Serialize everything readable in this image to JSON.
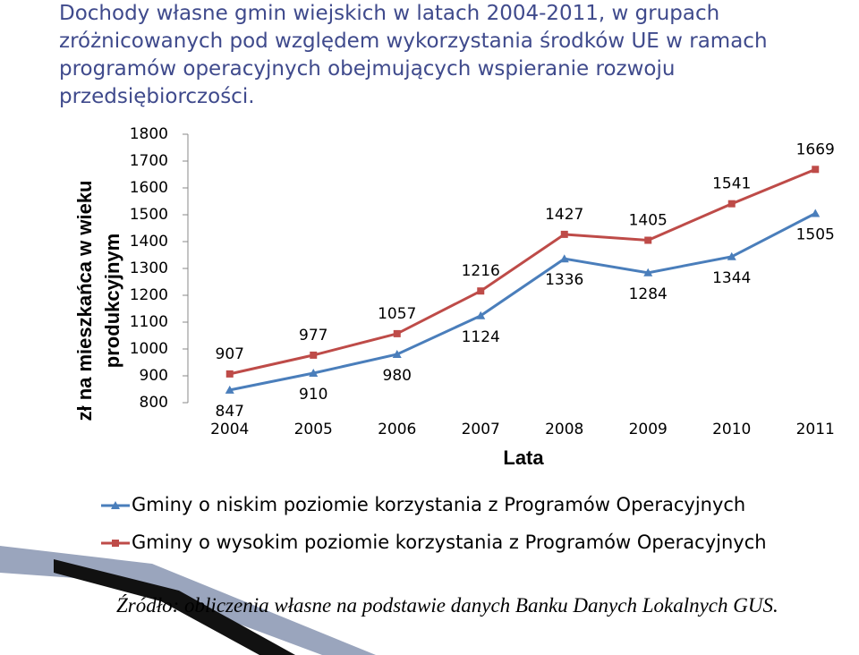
{
  "chart_data": {
    "type": "line",
    "title": "Dochody własne gmin wiejskich w latach 2004-2011, w grupach zróżnicowanych pod względem wykorzystania środków UE w ramach programów operacyjnych obejmujących wspieranie rozwoju przedsiębiorczości.",
    "y_label": "zł na mieszkańca w wieku produkcyjnym",
    "x_label": "Lata",
    "categories": [
      "2004",
      "2005",
      "2006",
      "2007",
      "2008",
      "2009",
      "2010",
      "2011"
    ],
    "series": [
      {
        "name": "Gminy o niskim poziomie korzystania z Programów Operacyjnych",
        "color": "#4a7ebb",
        "marker": "triangle",
        "values": [
          847,
          910,
          980,
          1124,
          1336,
          1284,
          1344,
          1505
        ]
      },
      {
        "name": "Gminy o wysokim poziomie korzystania z Programów Operacyjnych",
        "color": "#be4b48",
        "marker": "square",
        "values": [
          907,
          977,
          1057,
          1216,
          1427,
          1405,
          1541,
          1669
        ]
      }
    ],
    "ylim": [
      800,
      1800
    ],
    "yticks": [
      800,
      900,
      1000,
      1100,
      1200,
      1300,
      1400,
      1500,
      1600,
      1700,
      1800
    ],
    "grid": false,
    "legend": "bottom",
    "source": "Źródło: obliczenia własne na podstawie danych Banku Danych Lokalnych GUS."
  }
}
